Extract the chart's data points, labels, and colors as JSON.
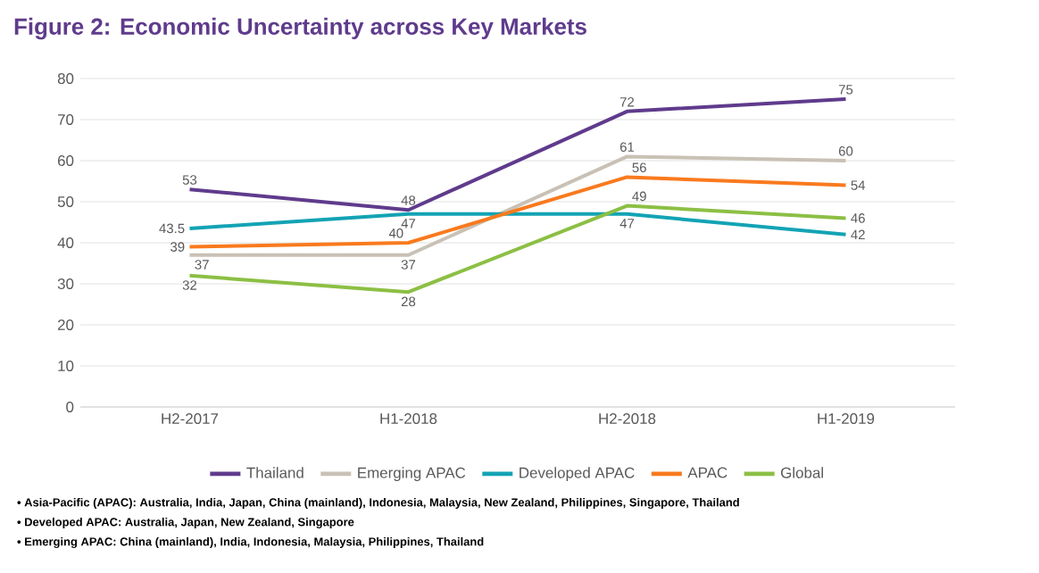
{
  "chart_data": {
    "type": "line",
    "title": "Figure 2: Economic Uncertainty across Key Markets",
    "categories": [
      "H2-2017",
      "H1-2018",
      "H2-2018",
      "H1-2019"
    ],
    "series": [
      {
        "name": "Thailand",
        "color": "#5f3b8c",
        "values": [
          53,
          48,
          72,
          75
        ]
      },
      {
        "name": "Emerging APAC",
        "color": "#c9c1b5",
        "values": [
          37,
          37,
          61,
          60
        ]
      },
      {
        "name": "Developed APAC",
        "color": "#13a3b4",
        "values": [
          43.5,
          47,
          47,
          42
        ]
      },
      {
        "name": "APAC",
        "color": "#f97a1e",
        "values": [
          39,
          40,
          56,
          54
        ]
      },
      {
        "name": "Global",
        "color": "#8cbf44",
        "values": [
          32,
          28,
          49,
          46
        ]
      }
    ],
    "ylim": [
      0,
      80
    ],
    "yticks": [
      0,
      10,
      20,
      30,
      40,
      50,
      60,
      70,
      80
    ],
    "grid": "y",
    "legend": "bottom",
    "data_labels": true,
    "annotations": [
      "• Asia-Pacific (APAC): Australia, India, Japan, China (mainland), Indonesia, Malaysia, New Zealand, Philippines, Singapore, Thailand",
      "• Developed APAC: Australia, Japan, New Zealand, Singapore",
      "• Emerging APAC: China (mainland), India, Indonesia, Malaysia, Philippines, Thailand"
    ]
  }
}
